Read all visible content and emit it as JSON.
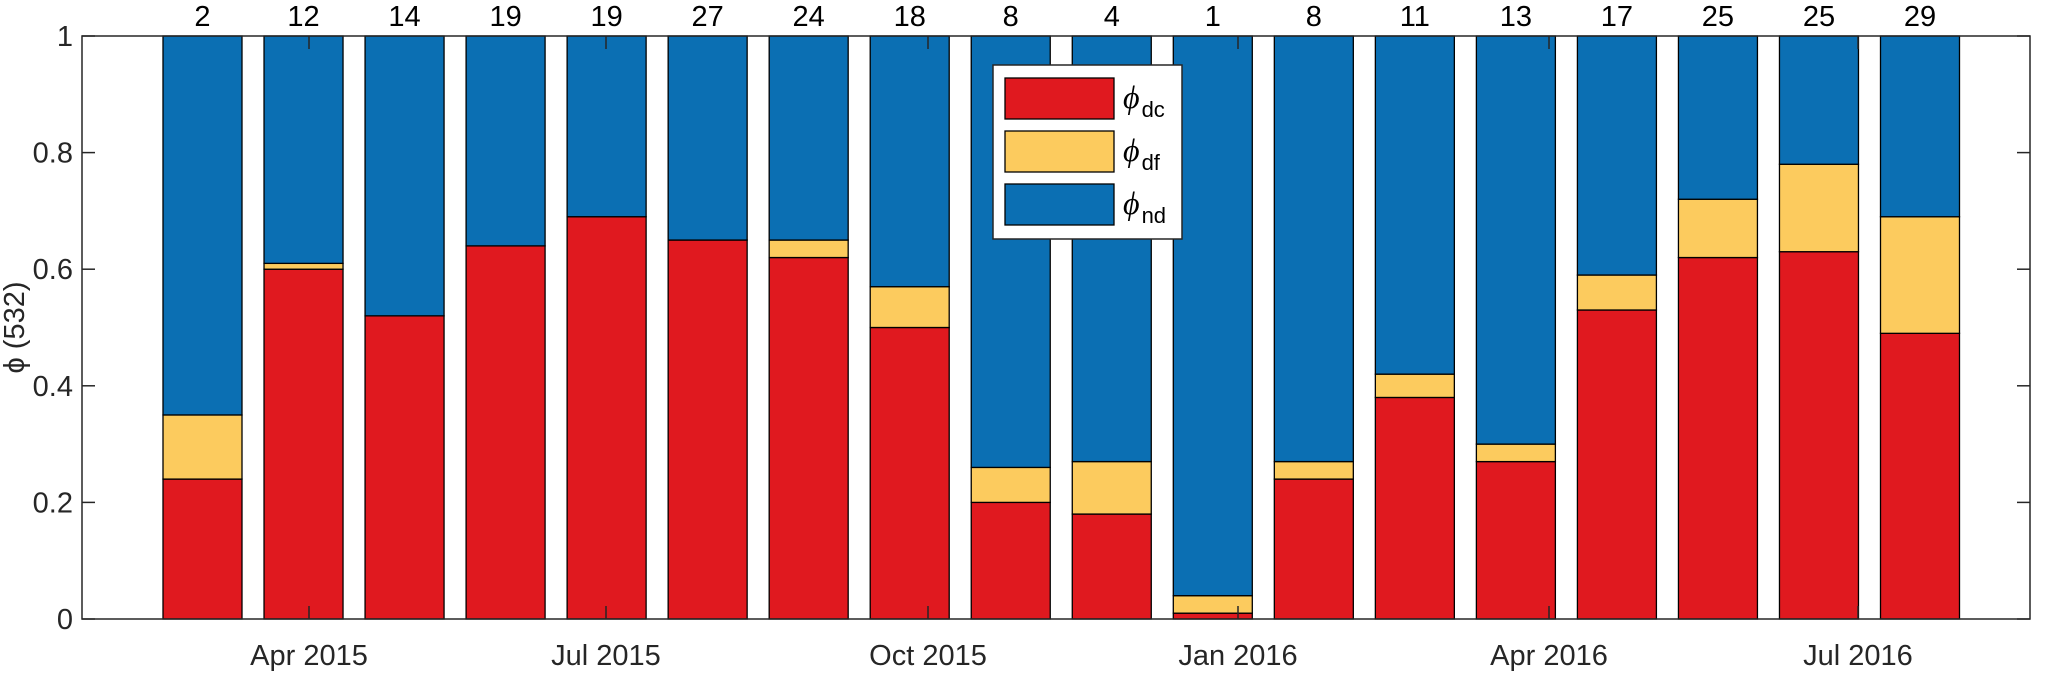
{
  "chart_data": {
    "type": "bar",
    "stacked": true,
    "ylabel": "ϕ (532)",
    "ylim": [
      0,
      1
    ],
    "yticks": [
      "0",
      "0.2",
      "0.4",
      "0.6",
      "0.8",
      "1"
    ],
    "xtick_labels": [
      "Apr 2015",
      "Jul 2015",
      "Oct 2015",
      "Jan 2016",
      "Apr 2016",
      "Jul 2016"
    ],
    "grid": false,
    "legend_position": "top-center",
    "counts": [
      "2",
      "12",
      "14",
      "19",
      "19",
      "27",
      "24",
      "18",
      "8",
      "4",
      "1",
      "8",
      "11",
      "13",
      "17",
      "25",
      "25",
      "29"
    ],
    "series": [
      {
        "name": "ϕ",
        "subscript": "dc",
        "color": "#e0191f",
        "values": [
          0.24,
          0.6,
          0.52,
          0.64,
          0.69,
          0.65,
          0.62,
          0.5,
          0.2,
          0.18,
          0.01,
          0.24,
          0.38,
          0.27,
          0.53,
          0.62,
          0.63,
          0.49
        ]
      },
      {
        "name": "ϕ",
        "subscript": "df",
        "color": "#fccb5e",
        "values": [
          0.11,
          0.01,
          0.0,
          0.0,
          0.0,
          0.0,
          0.03,
          0.07,
          0.06,
          0.09,
          0.03,
          0.03,
          0.04,
          0.03,
          0.06,
          0.1,
          0.15,
          0.2
        ]
      },
      {
        "name": "ϕ",
        "subscript": "nd",
        "color": "#0b6fb3",
        "values": [
          0.65,
          0.39,
          0.48,
          0.36,
          0.31,
          0.35,
          0.35,
          0.43,
          0.74,
          0.73,
          0.96,
          0.73,
          0.58,
          0.7,
          0.41,
          0.28,
          0.22,
          0.31
        ]
      }
    ]
  }
}
